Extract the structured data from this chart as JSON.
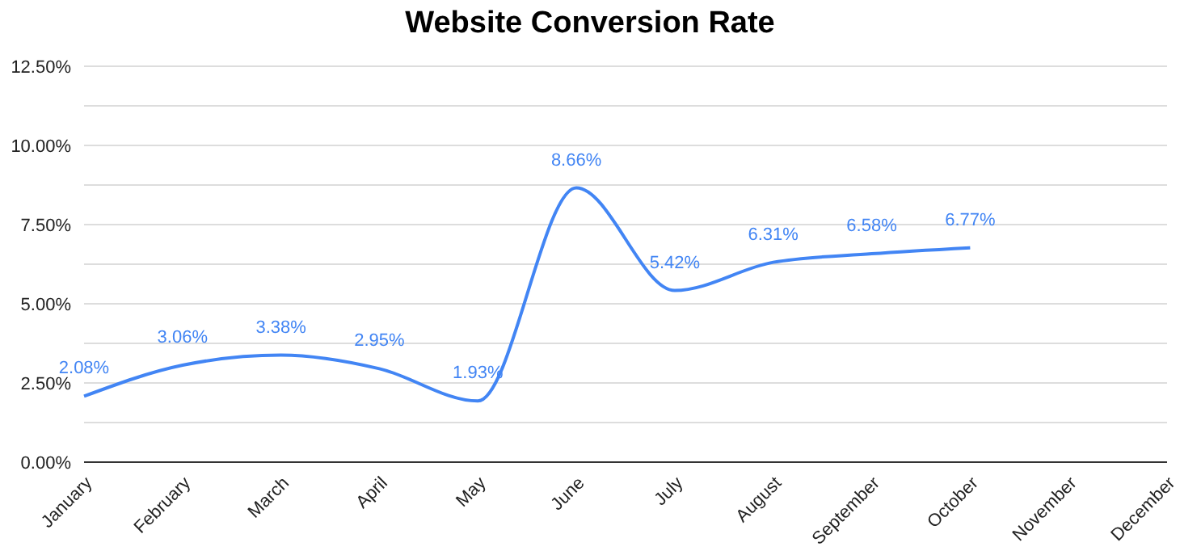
{
  "chart_data": {
    "type": "line",
    "title": "Website Conversion Rate",
    "categories": [
      "January",
      "February",
      "March",
      "April",
      "May",
      "June",
      "July",
      "August",
      "September",
      "October",
      "November",
      "December"
    ],
    "series": [
      {
        "color": "#4285f4",
        "values": [
          2.08,
          3.06,
          3.38,
          2.95,
          1.93,
          8.66,
          5.42,
          6.31,
          6.58,
          6.77,
          null,
          null
        ],
        "value_labels": [
          "2.08%",
          "3.06%",
          "3.38%",
          "2.95%",
          "1.93%",
          "8.66%",
          "5.42%",
          "6.31%",
          "6.58%",
          "6.77%",
          null,
          null
        ]
      }
    ],
    "ylim": [
      0,
      12.5
    ],
    "yticks": [
      {
        "value": 0,
        "label": "0.00%"
      },
      {
        "value": 1.25,
        "label": null
      },
      {
        "value": 2.5,
        "label": "2.50%"
      },
      {
        "value": 3.75,
        "label": null
      },
      {
        "value": 5,
        "label": "5.00%"
      },
      {
        "value": 6.25,
        "label": null
      },
      {
        "value": 7.5,
        "label": "7.50%"
      },
      {
        "value": 8.75,
        "label": null
      },
      {
        "value": 10,
        "label": "10.00%"
      },
      {
        "value": 11.25,
        "label": null
      },
      {
        "value": 12.5,
        "label": "12.50%"
      }
    ],
    "grid": "y",
    "legend": false,
    "marker": "none",
    "line_style": "solid"
  }
}
